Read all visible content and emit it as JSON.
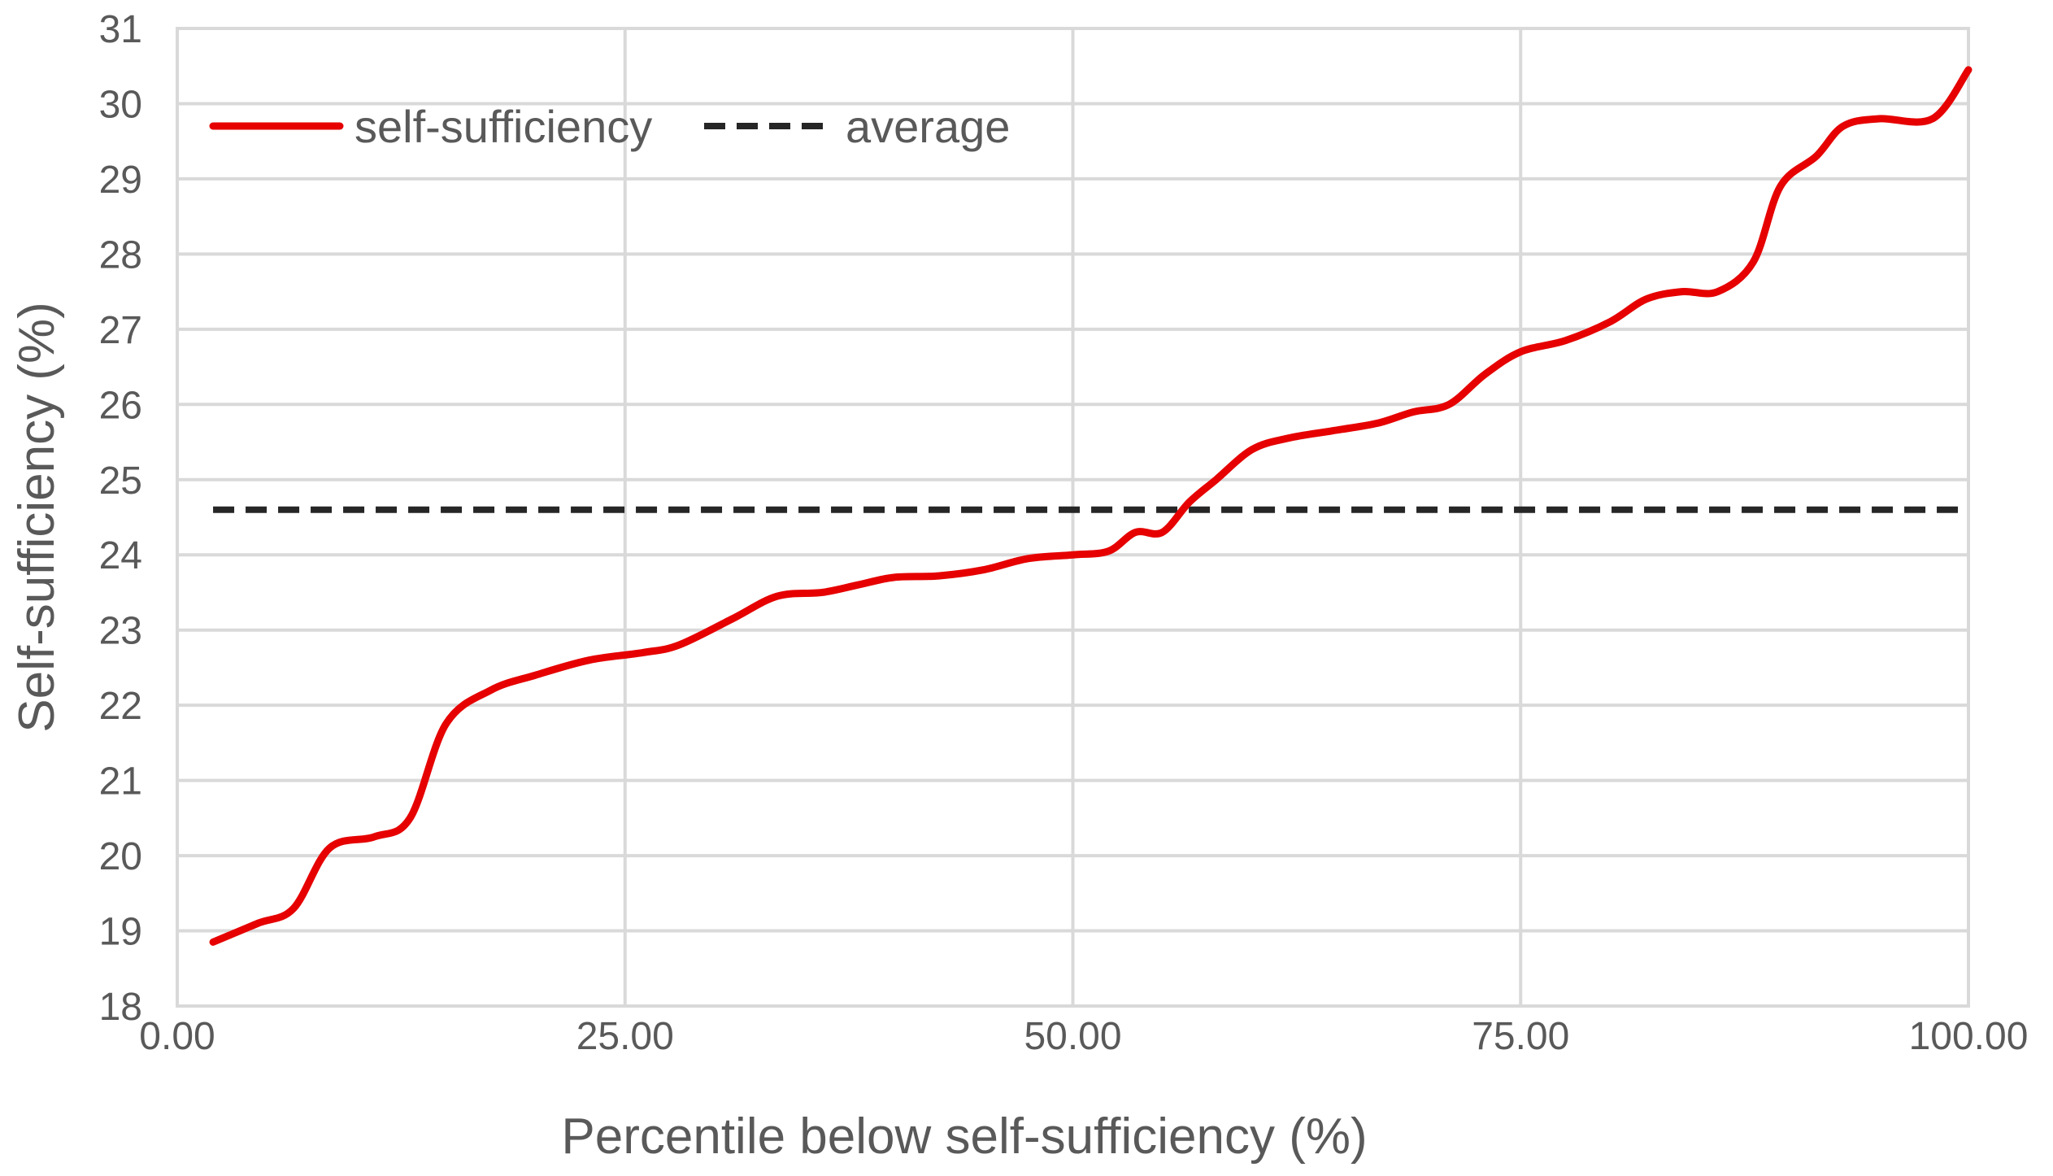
{
  "chart_data": {
    "type": "line",
    "title": "",
    "xlabel": "Percentile below self-sufficiency (%)",
    "ylabel": "Self-sufficiency (%)",
    "xlim": [
      0,
      100
    ],
    "ylim": [
      18,
      31
    ],
    "x_ticks": [
      0,
      25,
      50,
      75,
      100
    ],
    "x_tick_labels": [
      "0.00",
      "25.00",
      "50.00",
      "75.00",
      "100.00"
    ],
    "y_ticks": [
      18,
      19,
      20,
      21,
      22,
      23,
      24,
      25,
      26,
      27,
      28,
      29,
      30,
      31
    ],
    "y_tick_labels": [
      "18",
      "19",
      "20",
      "21",
      "22",
      "23",
      "24",
      "25",
      "26",
      "27",
      "28",
      "29",
      "30",
      "31"
    ],
    "grid": true,
    "legend_position": "top-left",
    "series": [
      {
        "name": "self-sufficiency",
        "color": "#e60000",
        "style": "solid",
        "x": [
          2,
          4.5,
          6.5,
          8.5,
          11,
          13,
          15,
          17.5,
          20,
          23,
          26,
          28,
          31,
          33.5,
          36,
          38,
          40,
          42.5,
          45,
          47.5,
          50,
          52,
          53.5,
          55,
          56.5,
          58,
          60,
          62,
          64.5,
          67,
          69,
          71,
          73,
          75,
          77.5,
          80,
          82,
          84,
          86,
          88,
          89.5,
          91.5,
          93,
          95,
          98,
          100
        ],
        "y": [
          18.85,
          19.1,
          19.3,
          20.1,
          20.25,
          20.5,
          21.75,
          22.2,
          22.4,
          22.6,
          22.7,
          22.8,
          23.15,
          23.45,
          23.5,
          23.6,
          23.7,
          23.72,
          23.8,
          23.95,
          24.0,
          24.05,
          24.3,
          24.3,
          24.7,
          25.0,
          25.4,
          25.55,
          25.65,
          25.75,
          25.9,
          26.0,
          26.4,
          26.7,
          26.85,
          27.1,
          27.4,
          27.5,
          27.5,
          27.9,
          28.9,
          29.3,
          29.7,
          29.8,
          29.8,
          30.45
        ]
      },
      {
        "name": "average",
        "color": "#262626",
        "style": "dashed",
        "x": [
          2,
          100
        ],
        "y": [
          24.6,
          24.6
        ]
      }
    ]
  }
}
